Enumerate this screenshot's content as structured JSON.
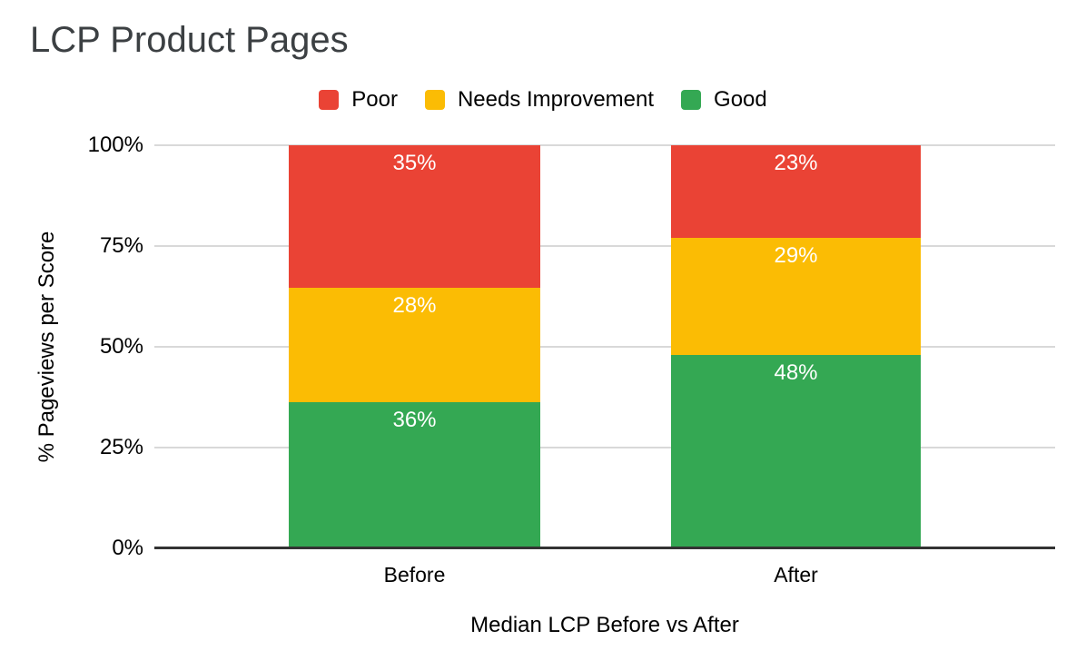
{
  "chart_data": {
    "type": "bar",
    "subtype": "stacked-100-percent",
    "title": "LCP Product Pages",
    "xlabel": "Median LCP Before vs After",
    "ylabel": "% Pageviews per Score",
    "categories": [
      "Before",
      "After"
    ],
    "series": [
      {
        "name": "Poor",
        "color": "#EA4335",
        "values": [
          35,
          23
        ],
        "labels": [
          "35%",
          "23%"
        ]
      },
      {
        "name": "Needs Improvement",
        "color": "#FBBC04",
        "values": [
          28,
          29
        ],
        "labels": [
          "28%",
          "29%"
        ]
      },
      {
        "name": "Good",
        "color": "#34A853",
        "values": [
          36,
          48
        ],
        "labels": [
          "36%",
          "48%"
        ]
      }
    ],
    "y_ticks": [
      "100%",
      "75%",
      "50%",
      "25%",
      "0%"
    ],
    "ylim": [
      0,
      100
    ],
    "grid": true,
    "legend_position": "top",
    "colors": {
      "poor": "#EA4335",
      "needs_improvement": "#FBBC04",
      "good": "#34A853",
      "gridline": "#D9D9D9",
      "axis_line": "#333333",
      "title_text": "#3C4043",
      "axis_text": "#000000",
      "bar_label_text": "#FFFFFF"
    }
  }
}
